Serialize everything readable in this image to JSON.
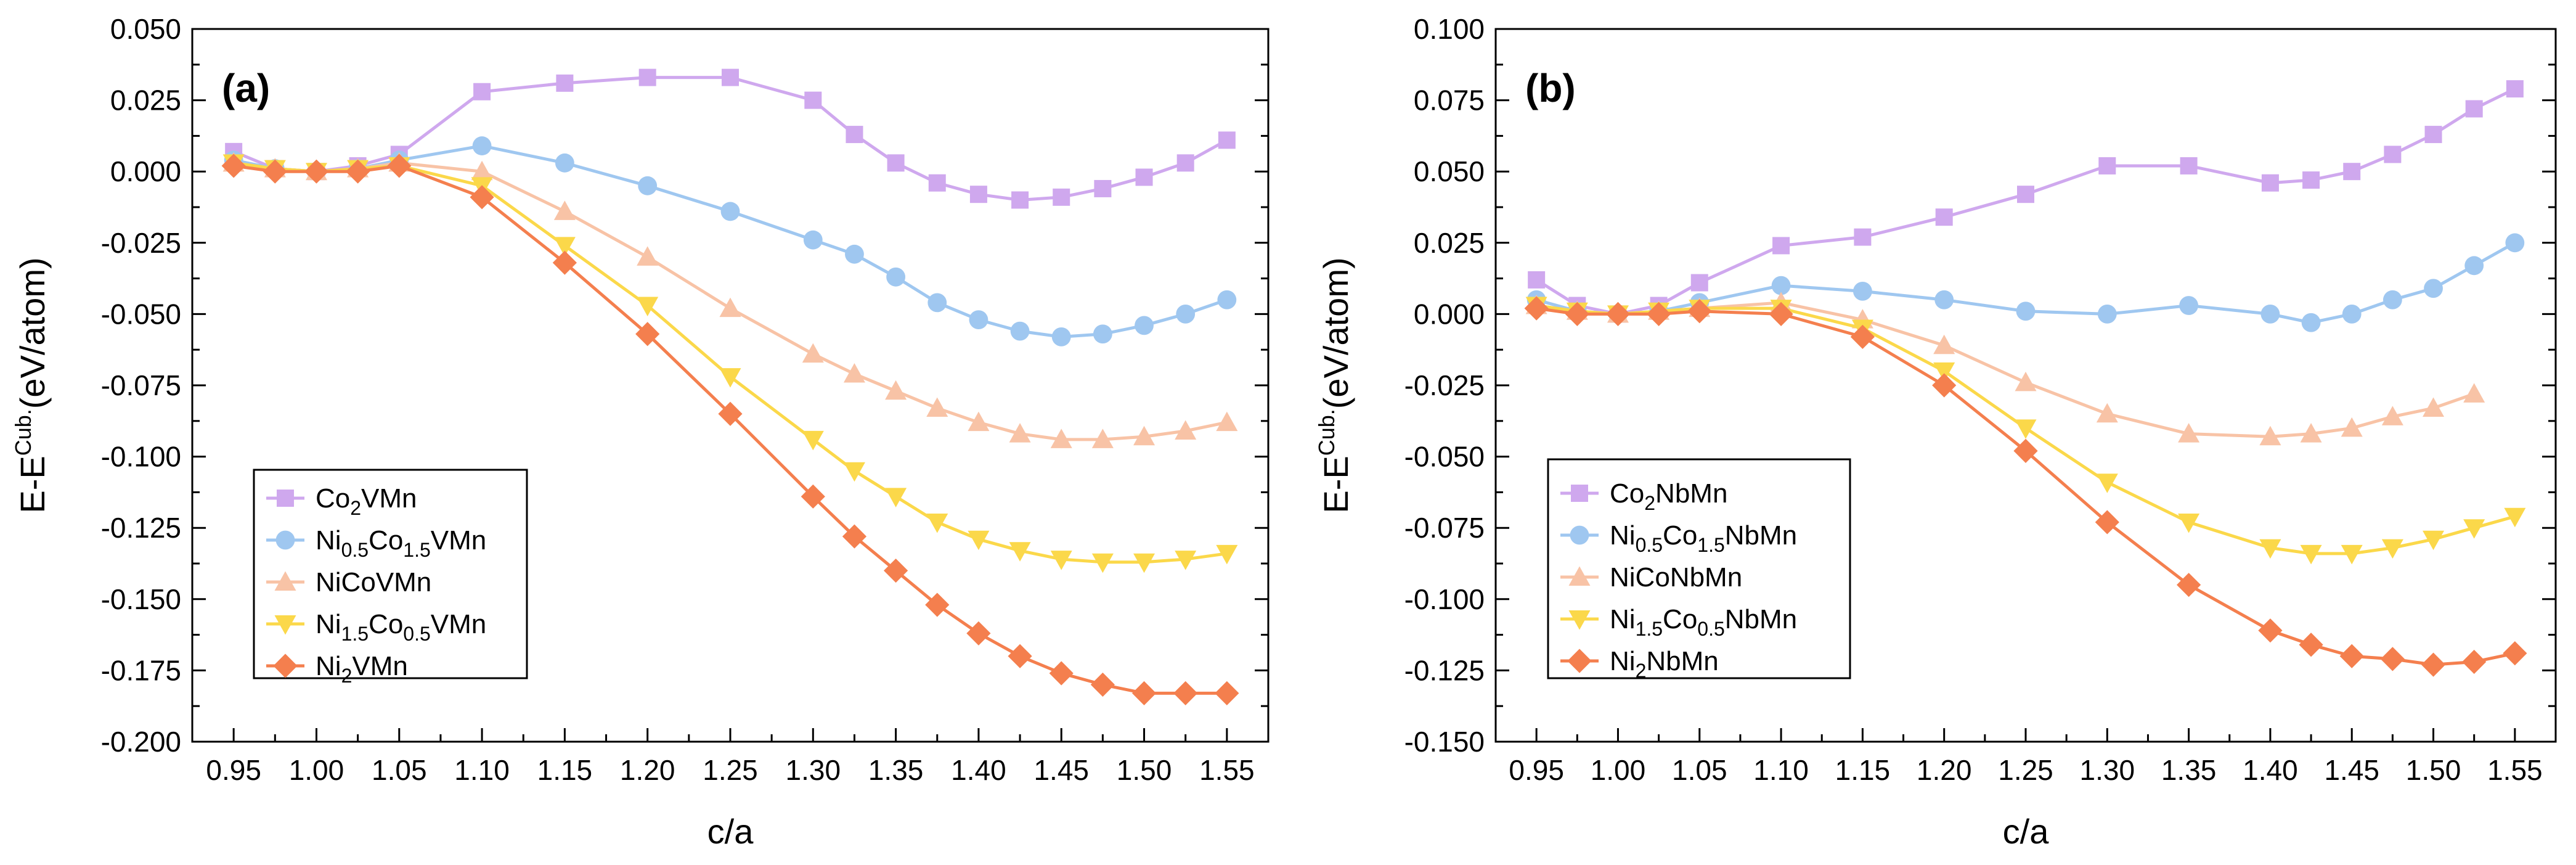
{
  "chart_data": [
    {
      "type": "line",
      "panel_label": "(a)",
      "xlabel": "c/a",
      "ylabel": "E-E^{Cub.}(eV/atom)",
      "ylabel_main": "E-E",
      "ylabel_sup": "Cub.",
      "ylabel_tail": "(eV/atom)",
      "xlim": [
        0.925,
        1.575
      ],
      "ylim": [
        -0.2,
        0.05
      ],
      "x_ticks": [
        0.95,
        1.0,
        1.05,
        1.1,
        1.15,
        1.2,
        1.25,
        1.3,
        1.35,
        1.4,
        1.45,
        1.5,
        1.55
      ],
      "x_tick_labels": [
        "0.95",
        "1.00",
        "1.05",
        "1.10",
        "1.15",
        "1.20",
        "1.25",
        "1.30",
        "1.35",
        "1.40",
        "1.45",
        "1.50",
        "1.55"
      ],
      "y_ticks": [
        -0.2,
        -0.175,
        -0.15,
        -0.125,
        -0.1,
        -0.075,
        -0.05,
        -0.025,
        0.0,
        0.025,
        0.05
      ],
      "y_tick_labels": [
        "-0.200",
        "-0.175",
        "-0.150",
        "-0.125",
        "-0.100",
        "-0.075",
        "-0.050",
        "-0.025",
        "0.000",
        "0.025",
        "0.050"
      ],
      "legend_position": "bottom-left",
      "series": [
        {
          "name": "Co2VMn",
          "label": {
            "parts": [
              [
                "Co",
                ""
              ],
              [
                "2",
                "sub"
              ],
              [
                "VMn",
                ""
              ]
            ]
          },
          "color": "#cfa8ee",
          "marker": "square",
          "x": [
            0.95,
            0.975,
            1.0,
            1.025,
            1.05,
            1.1,
            1.15,
            1.2,
            1.25,
            1.3,
            1.325,
            1.35,
            1.375,
            1.4,
            1.425,
            1.45,
            1.475,
            1.5,
            1.525,
            1.55
          ],
          "y": [
            0.007,
            0.001,
            0.0,
            0.002,
            0.006,
            0.028,
            0.031,
            0.033,
            0.033,
            0.025,
            0.013,
            0.003,
            -0.004,
            -0.008,
            -0.01,
            -0.009,
            -0.006,
            -0.002,
            0.003,
            0.011
          ]
        },
        {
          "name": "Ni0.5Co1.5VMn",
          "label": {
            "parts": [
              [
                "Ni",
                ""
              ],
              [
                "0.5",
                "sub"
              ],
              [
                "Co",
                ""
              ],
              [
                "1.5",
                "sub"
              ],
              [
                "VMn",
                ""
              ]
            ]
          },
          "color": "#9fc7f0",
          "marker": "circle",
          "x": [
            0.95,
            0.975,
            1.0,
            1.025,
            1.05,
            1.1,
            1.15,
            1.2,
            1.25,
            1.3,
            1.325,
            1.35,
            1.375,
            1.4,
            1.425,
            1.45,
            1.475,
            1.5,
            1.525,
            1.55
          ],
          "y": [
            0.004,
            0.001,
            0.0,
            0.001,
            0.004,
            0.009,
            0.003,
            -0.005,
            -0.014,
            -0.024,
            -0.029,
            -0.037,
            -0.046,
            -0.052,
            -0.056,
            -0.058,
            -0.057,
            -0.054,
            -0.05,
            -0.045
          ]
        },
        {
          "name": "NiCoVMn",
          "label": {
            "parts": [
              [
                "NiCoVMn",
                ""
              ]
            ]
          },
          "color": "#f8c3a6",
          "marker": "triangle-up",
          "x": [
            0.95,
            0.975,
            1.0,
            1.025,
            1.05,
            1.1,
            1.15,
            1.2,
            1.25,
            1.3,
            1.325,
            1.35,
            1.375,
            1.4,
            1.425,
            1.45,
            1.475,
            1.5,
            1.525,
            1.55
          ],
          "y": [
            0.003,
            0.001,
            0.0,
            0.001,
            0.003,
            0.0,
            -0.014,
            -0.03,
            -0.048,
            -0.064,
            -0.071,
            -0.077,
            -0.083,
            -0.088,
            -0.092,
            -0.094,
            -0.094,
            -0.093,
            -0.091,
            -0.088
          ]
        },
        {
          "name": "Ni1.5Co0.5VMn",
          "label": {
            "parts": [
              [
                "Ni",
                ""
              ],
              [
                "1.5",
                "sub"
              ],
              [
                "Co",
                ""
              ],
              [
                "0.5",
                "sub"
              ],
              [
                "VMn",
                ""
              ]
            ]
          },
          "color": "#fbd84a",
          "marker": "triangle-down",
          "x": [
            0.95,
            0.975,
            1.0,
            1.025,
            1.05,
            1.1,
            1.15,
            1.2,
            1.25,
            1.3,
            1.325,
            1.35,
            1.375,
            1.4,
            1.425,
            1.45,
            1.475,
            1.5,
            1.525,
            1.55
          ],
          "y": [
            0.003,
            0.001,
            0.0,
            0.001,
            0.002,
            -0.005,
            -0.026,
            -0.047,
            -0.072,
            -0.094,
            -0.105,
            -0.114,
            -0.123,
            -0.129,
            -0.133,
            -0.136,
            -0.137,
            -0.137,
            -0.136,
            -0.134
          ]
        },
        {
          "name": "Ni2VMn",
          "label": {
            "parts": [
              [
                "Ni",
                ""
              ],
              [
                "2",
                "sub"
              ],
              [
                "VMn",
                ""
              ]
            ]
          },
          "color": "#f47f4e",
          "marker": "diamond",
          "x": [
            0.95,
            0.975,
            1.0,
            1.025,
            1.05,
            1.1,
            1.15,
            1.2,
            1.25,
            1.3,
            1.325,
            1.35,
            1.375,
            1.4,
            1.425,
            1.45,
            1.475,
            1.5,
            1.525,
            1.55
          ],
          "y": [
            0.002,
            0.0,
            0.0,
            0.0,
            0.002,
            -0.009,
            -0.032,
            -0.057,
            -0.085,
            -0.114,
            -0.128,
            -0.14,
            -0.152,
            -0.162,
            -0.17,
            -0.176,
            -0.18,
            -0.183,
            -0.183,
            -0.183
          ]
        }
      ]
    },
    {
      "type": "line",
      "panel_label": "(b)",
      "xlabel": "c/a",
      "ylabel": "E-E^{Cub.}(eV/atom)",
      "ylabel_main": "E-E",
      "ylabel_sup": "Cub.",
      "ylabel_tail": "(eV/atom)",
      "xlim": [
        0.925,
        1.575
      ],
      "ylim": [
        -0.15,
        0.1
      ],
      "x_ticks": [
        0.95,
        1.0,
        1.05,
        1.1,
        1.15,
        1.2,
        1.25,
        1.3,
        1.35,
        1.4,
        1.45,
        1.5,
        1.55
      ],
      "x_tick_labels": [
        "0.95",
        "1.00",
        "1.05",
        "1.10",
        "1.15",
        "1.20",
        "1.25",
        "1.30",
        "1.35",
        "1.40",
        "1.45",
        "1.50",
        "1.55"
      ],
      "y_ticks": [
        -0.15,
        -0.125,
        -0.1,
        -0.075,
        -0.05,
        -0.025,
        0.0,
        0.025,
        0.05,
        0.075,
        0.1
      ],
      "y_tick_labels": [
        "-0.150",
        "-0.125",
        "-0.100",
        "-0.075",
        "-0.050",
        "-0.025",
        "0.000",
        "0.025",
        "0.050",
        "0.075",
        "0.100"
      ],
      "legend_position": "bottom-left",
      "series": [
        {
          "name": "Co2NbMn",
          "label": {
            "parts": [
              [
                "Co",
                ""
              ],
              [
                "2",
                "sub"
              ],
              [
                "NbMn",
                ""
              ]
            ]
          },
          "color": "#cfa8ee",
          "marker": "square",
          "x": [
            0.95,
            0.975,
            1.0,
            1.025,
            1.05,
            1.1,
            1.15,
            1.2,
            1.25,
            1.3,
            1.35,
            1.4,
            1.425,
            1.45,
            1.475,
            1.5,
            1.525,
            1.55
          ],
          "y": [
            0.012,
            0.003,
            0.0,
            0.003,
            0.011,
            0.024,
            0.027,
            0.034,
            0.042,
            0.052,
            0.052,
            0.046,
            0.047,
            0.05,
            0.056,
            0.063,
            0.072,
            0.079
          ]
        },
        {
          "name": "Ni0.5Co1.5NbMn",
          "label": {
            "parts": [
              [
                "Ni",
                ""
              ],
              [
                "0.5",
                "sub"
              ],
              [
                "Co",
                ""
              ],
              [
                "1.5",
                "sub"
              ],
              [
                "NbMn",
                ""
              ]
            ]
          },
          "color": "#9fc7f0",
          "marker": "circle",
          "x": [
            0.95,
            0.975,
            1.0,
            1.025,
            1.05,
            1.1,
            1.15,
            1.2,
            1.25,
            1.3,
            1.35,
            1.4,
            1.425,
            1.45,
            1.475,
            1.5,
            1.525,
            1.55
          ],
          "y": [
            0.005,
            0.001,
            0.0,
            0.001,
            0.004,
            0.01,
            0.008,
            0.005,
            0.001,
            0.0,
            0.003,
            -0.0,
            -0.003,
            0.0,
            0.005,
            0.009,
            0.017,
            0.025
          ]
        },
        {
          "name": "NiCoNbMn",
          "label": {
            "parts": [
              [
                "NiCoNbMn",
                ""
              ]
            ]
          },
          "color": "#f8c3a6",
          "marker": "triangle-up",
          "x": [
            0.95,
            0.975,
            1.0,
            1.025,
            1.05,
            1.1,
            1.15,
            1.2,
            1.25,
            1.3,
            1.35,
            1.4,
            1.425,
            1.45,
            1.475,
            1.5,
            1.525
          ],
          "y": [
            0.003,
            0.001,
            0.0,
            0.001,
            0.002,
            0.004,
            -0.002,
            -0.011,
            -0.024,
            -0.035,
            -0.042,
            -0.043,
            -0.042,
            -0.04,
            -0.036,
            -0.033,
            -0.028
          ]
        },
        {
          "name": "Ni1.5Co0.5NbMn",
          "label": {
            "parts": [
              [
                "Ni",
                ""
              ],
              [
                "1.5",
                "sub"
              ],
              [
                "Co",
                ""
              ],
              [
                "0.5",
                "sub"
              ],
              [
                "NbMn",
                ""
              ]
            ]
          },
          "color": "#fbd84a",
          "marker": "triangle-down",
          "x": [
            0.95,
            0.975,
            1.0,
            1.025,
            1.05,
            1.1,
            1.15,
            1.2,
            1.25,
            1.3,
            1.35,
            1.4,
            1.425,
            1.45,
            1.475,
            1.5,
            1.525,
            1.55
          ],
          "y": [
            0.003,
            0.001,
            0.0,
            0.001,
            0.002,
            0.002,
            -0.005,
            -0.02,
            -0.04,
            -0.059,
            -0.073,
            -0.082,
            -0.084,
            -0.084,
            -0.082,
            -0.079,
            -0.075,
            -0.071
          ]
        },
        {
          "name": "Ni2NbMn",
          "label": {
            "parts": [
              [
                "Ni",
                ""
              ],
              [
                "2",
                "sub"
              ],
              [
                "NbMn",
                ""
              ]
            ]
          },
          "color": "#f47f4e",
          "marker": "diamond",
          "x": [
            0.95,
            0.975,
            1.0,
            1.025,
            1.05,
            1.1,
            1.15,
            1.2,
            1.25,
            1.3,
            1.35,
            1.4,
            1.425,
            1.45,
            1.475,
            1.5,
            1.525,
            1.55
          ],
          "y": [
            0.002,
            0.0,
            0.0,
            0.0,
            0.001,
            0.0,
            -0.008,
            -0.025,
            -0.048,
            -0.073,
            -0.095,
            -0.111,
            -0.116,
            -0.12,
            -0.121,
            -0.123,
            -0.122,
            -0.119
          ]
        }
      ]
    }
  ]
}
